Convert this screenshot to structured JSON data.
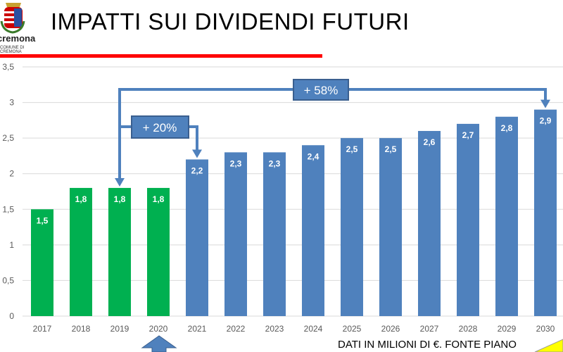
{
  "title": "IMPATTI SUI DIVIDENDI FUTURI",
  "logo": {
    "name": "cremona",
    "subtitle": "COMUNE DI CREMONA"
  },
  "note": "DATI IN MILIONI DI €. FONTE PIANO",
  "chart_data": {
    "type": "bar",
    "categories": [
      "2017",
      "2018",
      "2019",
      "2020",
      "2021",
      "2022",
      "2023",
      "2024",
      "2025",
      "2026",
      "2027",
      "2028",
      "2029",
      "2030"
    ],
    "values": [
      1.5,
      1.8,
      1.8,
      1.8,
      2.2,
      2.3,
      2.3,
      2.4,
      2.5,
      2.5,
      2.6,
      2.7,
      2.8,
      2.9
    ],
    "labels": [
      "1,5",
      "1,8",
      "1,8",
      "1,8",
      "2,2",
      "2,3",
      "2,3",
      "2,4",
      "2,5",
      "2,5",
      "2,6",
      "2,7",
      "2,8",
      "2,9"
    ],
    "colors": [
      "#00b050",
      "#00b050",
      "#00b050",
      "#00b050",
      "#4f81bd",
      "#4f81bd",
      "#4f81bd",
      "#4f81bd",
      "#4f81bd",
      "#4f81bd",
      "#4f81bd",
      "#4f81bd",
      "#4f81bd",
      "#4f81bd"
    ],
    "ylim": [
      0,
      3.5
    ],
    "yticks": [
      "0",
      "0,5",
      "1",
      "1,5",
      "2",
      "2,5",
      "3",
      "3,5"
    ],
    "grid": true,
    "annotations": [
      {
        "text": "+ 20%",
        "from": "2019",
        "to": "2021"
      },
      {
        "text": "+ 58%",
        "from": "2019",
        "to": "2030"
      }
    ]
  }
}
